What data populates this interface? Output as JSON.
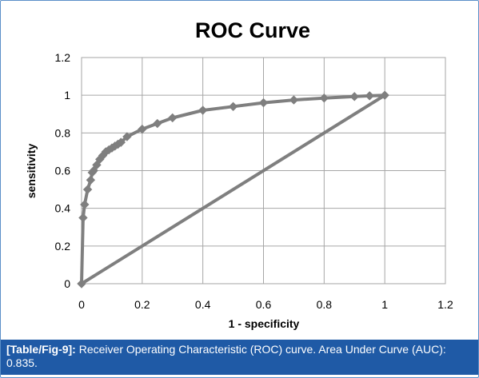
{
  "caption": {
    "tag": "[Table/Fig-9]:",
    "text": " Receiver Operating Characteristic (ROC) curve. Area Under Curve (AUC): 0.835."
  },
  "colors": {
    "series": "#7f7f7f",
    "grid": "#a6a6a6",
    "caption_bg": "#1f5aa6"
  },
  "chart_data": {
    "type": "line",
    "title": "ROC Curve",
    "xlabel": "1 - specificity",
    "ylabel": "sensitivity",
    "xlim": [
      0,
      1.2
    ],
    "ylim": [
      0,
      1.2
    ],
    "xticks": [
      "0",
      "0.2",
      "0.4",
      "0.6",
      "0.8",
      "1",
      "1.2"
    ],
    "yticks": [
      "0",
      "0.2",
      "0.4",
      "0.6",
      "0.8",
      "1",
      "1.2"
    ],
    "grid": true,
    "legend": "none",
    "series": [
      {
        "markers": true,
        "x": [
          0,
          0.005,
          0.01,
          0.02,
          0.03,
          0.035,
          0.04,
          0.05,
          0.06,
          0.07,
          0.08,
          0.09,
          0.1,
          0.11,
          0.12,
          0.13,
          0.15,
          0.2,
          0.25,
          0.3,
          0.4,
          0.5,
          0.6,
          0.7,
          0.8,
          0.9,
          0.95,
          1.0
        ],
        "y": [
          0,
          0.35,
          0.42,
          0.5,
          0.55,
          0.59,
          0.6,
          0.63,
          0.66,
          0.68,
          0.7,
          0.71,
          0.72,
          0.73,
          0.74,
          0.75,
          0.78,
          0.82,
          0.85,
          0.88,
          0.92,
          0.94,
          0.96,
          0.975,
          0.985,
          0.993,
          0.997,
          1.0
        ]
      },
      {
        "markers": false,
        "x": [
          0,
          1
        ],
        "y": [
          0,
          1
        ]
      }
    ]
  }
}
